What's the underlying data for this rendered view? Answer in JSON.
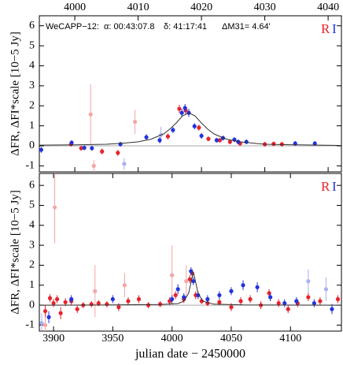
{
  "chart_data": [
    {
      "type": "scatter",
      "annotations": [
        "WeCAPP−12:",
        "α: 00:43:07.8",
        "δ: 41:17:41",
        "ΔM31= 4.64'"
      ],
      "ylabel": "ΔFR, ΔFI*scale [10−5 Jy]",
      "xlim": [
        3994.4,
        4042.1
      ],
      "xticks": [
        4000,
        4010,
        4020,
        4030,
        4040
      ],
      "xtick_side": "top",
      "ylim": [
        -1.3,
        6.5
      ],
      "yticks": [
        -1,
        0,
        1,
        2,
        3,
        4,
        5,
        6
      ],
      "legend": "upper right",
      "series": [
        {
          "name": "R",
          "color": "#e8222a",
          "x": [
            3999.4,
            4001.0,
            4004.3,
            4006.8,
            4014.7,
            4016.5,
            4017.5,
            4019.6,
            4021.1,
            4022.9,
            4024.5,
            4026.1,
            4030.0,
            4031.4,
            4032.7
          ],
          "values": [
            0.08,
            -0.12,
            -0.28,
            -0.35,
            0.47,
            1.85,
            1.77,
            0.91,
            0.35,
            0.28,
            0.2,
            0.12,
            0.08,
            0.1,
            0.08
          ],
          "errors": [
            0.12,
            0.12,
            0.15,
            0.15,
            0.15,
            0.2,
            0.2,
            0.15,
            0.12,
            0.12,
            0.12,
            0.12,
            0.12,
            0.12,
            0.12
          ]
        },
        {
          "name": "I",
          "color": "#2233dd",
          "x": [
            3994.7,
            3999.5,
            4001.5,
            4002.7,
            4007.2,
            4011.3,
            4013.4,
            4015.5,
            4016.9,
            4017.4,
            4018.0,
            4018.9,
            4020.0,
            4022.4,
            4023.4,
            4025.2,
            4025.8,
            4027.1,
            4034.8,
            4037.9
          ],
          "values": [
            -0.2,
            0.16,
            -0.1,
            -0.12,
            0.08,
            0.43,
            0.28,
            0.79,
            1.65,
            1.89,
            1.65,
            0.98,
            0.5,
            0.28,
            0.39,
            0.31,
            0.2,
            0.2,
            0.12,
            0.12
          ],
          "errors": [
            0.15,
            0.12,
            0.12,
            0.12,
            0.12,
            0.15,
            0.15,
            0.15,
            0.2,
            0.2,
            0.2,
            0.15,
            0.15,
            0.12,
            0.12,
            0.12,
            0.12,
            0.12,
            0.12,
            0.12
          ]
        },
        {
          "color": "#f4a6a6",
          "x": [
            4002.5,
            4003.0,
            4009.5
          ],
          "values": [
            1.57,
            -1.0,
            1.2
          ],
          "errors": [
            1.5,
            0.3,
            0.6
          ]
        },
        {
          "color": "#a9b0f2",
          "x": [
            4007.8,
            4013.6
          ],
          "values": [
            -0.9,
            0.55
          ],
          "errors": [
            0.3,
            0.4
          ]
        }
      ],
      "model": {
        "color": "#333333",
        "x": [
          3994,
          4000,
          4005,
          4008,
          4010,
          4012,
          4014,
          4015,
          4016,
          4017,
          4018,
          4019,
          4020,
          4021,
          4022,
          4024,
          4026,
          4030,
          4035,
          4042
        ],
        "values": [
          0.03,
          0.05,
          0.08,
          0.14,
          0.2,
          0.33,
          0.59,
          0.83,
          1.14,
          1.49,
          1.65,
          1.49,
          1.14,
          0.83,
          0.59,
          0.33,
          0.2,
          0.08,
          0.05,
          0.02
        ]
      }
    },
    {
      "type": "scatter",
      "ylabel": "ΔFR, ΔFI*scale [10−5 Jy]",
      "xlabel": "julian date − 2450000",
      "xlim": [
        3888,
        4143
      ],
      "xticks": [
        3900,
        3950,
        4000,
        4050,
        4100
      ],
      "xtick_side": "bottom",
      "ylim": [
        -1.3,
        6.6
      ],
      "yticks": [
        -1,
        0,
        1,
        2,
        3,
        4,
        5,
        6
      ],
      "legend": "upper right",
      "series": [
        {
          "name": "R",
          "color": "#e8222a",
          "x": [
            3893,
            3897,
            3900,
            3903,
            3906,
            3910,
            3915,
            3920,
            3925,
            3932,
            3938,
            3945,
            3955,
            3963,
            3972,
            3980,
            3990,
            3998,
            4003,
            4010,
            4015,
            4017,
            4020,
            4025,
            4030,
            4040,
            4050,
            4058,
            4066,
            4075,
            4082,
            4090,
            4098,
            4106,
            4115,
            4125,
            4140
          ],
          "values": [
            -0.3,
            0.35,
            0.1,
            0.3,
            -0.4,
            0.15,
            0.2,
            -0.2,
            0,
            0.05,
            0.1,
            0.05,
            -0.1,
            0.2,
            0.3,
            0,
            0.05,
            0.2,
            0.5,
            0.3,
            1.3,
            1.6,
            0.5,
            0.2,
            0.1,
            0.15,
            -0.1,
            0.2,
            0.3,
            0,
            0.6,
            0.1,
            -0.2,
            0.1,
            0.4,
            0.2,
            0.3
          ],
          "errors": [
            0.3,
            0.2,
            0.2,
            0.2,
            0.3,
            0.2,
            0.2,
            0.2,
            0.15,
            0.15,
            0.15,
            0.15,
            0.2,
            0.2,
            0.2,
            0.15,
            0.15,
            0.2,
            0.2,
            0.2,
            0.2,
            0.2,
            0.2,
            0.15,
            0.15,
            0.15,
            0.2,
            0.2,
            0.2,
            0.2,
            0.2,
            0.2,
            0.2,
            0.2,
            0.2,
            0.2,
            0.2
          ]
        },
        {
          "name": "I",
          "color": "#2233dd",
          "x": [
            3896,
            3915,
            3950,
            4000,
            4005,
            4010,
            4016,
            4018,
            4022,
            4030,
            4040,
            4050,
            4060,
            4072,
            4083,
            4095,
            4105,
            4120,
            4135
          ],
          "values": [
            -0.6,
            0.3,
            0.3,
            0.3,
            0.8,
            0.4,
            1.7,
            1.2,
            0.5,
            0.3,
            0.5,
            0.7,
            1.0,
            0.9,
            0.4,
            0.1,
            0.2,
            0.1,
            -0.2
          ],
          "errors": [
            0.3,
            0.2,
            0.2,
            0.2,
            0.25,
            0.2,
            0.2,
            0.2,
            0.2,
            0.2,
            0.2,
            0.2,
            0.25,
            0.25,
            0.2,
            0.2,
            0.2,
            0.2,
            0.25
          ]
        },
        {
          "color": "#f4a6a6",
          "x": [
            3901,
            3893,
            3960,
            4000,
            4012,
            3935
          ],
          "values": [
            4.9,
            -1.0,
            1.0,
            1.5,
            1.2,
            0.7
          ],
          "errors": [
            1.8,
            0.5,
            0.6,
            1.5,
            0.8,
            1.3
          ]
        },
        {
          "color": "#a9b0f2",
          "x": [
            4130,
            4115,
            3890
          ],
          "values": [
            0.8,
            1.2,
            -0.9
          ],
          "errors": [
            0.6,
            0.6,
            0.5
          ]
        }
      ],
      "model": {
        "color": "#333333",
        "x": [
          3888,
          3950,
          3990,
          4005,
          4010,
          4014,
          4016,
          4018,
          4020,
          4022,
          4026,
          4035,
          4060,
          4143
        ],
        "values": [
          0.0,
          0.01,
          0.03,
          0.08,
          0.2,
          0.59,
          1.14,
          1.65,
          1.14,
          0.59,
          0.2,
          0.05,
          0.01,
          0.0
        ]
      }
    }
  ]
}
